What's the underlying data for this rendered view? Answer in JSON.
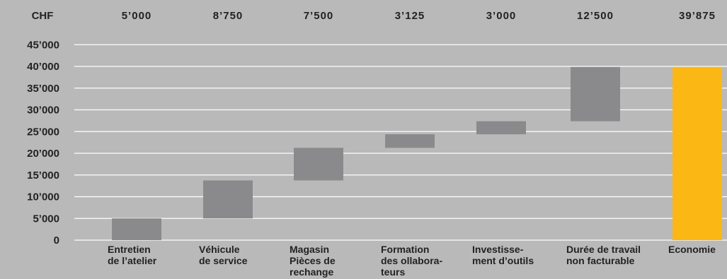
{
  "chart_data": {
    "type": "bar",
    "subtype": "waterfall",
    "unit_label": "CHF",
    "categories": [
      [
        "Entretien",
        "de l’atelier"
      ],
      [
        "Véhicule",
        "de service"
      ],
      [
        "Magasin",
        "Pièces de",
        "rechange"
      ],
      [
        "Formation",
        "des ollabora-",
        "teurs"
      ],
      [
        "Investisse-",
        "ment d’outils"
      ],
      [
        "Durée de travail",
        "non facturable"
      ],
      [
        "Economie"
      ]
    ],
    "value_labels": [
      "5’000",
      "8’750",
      "7’500",
      "3’125",
      "3’000",
      "12’500",
      "39’875"
    ],
    "values": [
      5000,
      8750,
      7500,
      3125,
      3000,
      12500,
      39875
    ],
    "bars": [
      {
        "start": 0,
        "end": 5000
      },
      {
        "start": 5000,
        "end": 13750
      },
      {
        "start": 13750,
        "end": 21250
      },
      {
        "start": 21250,
        "end": 24375
      },
      {
        "start": 24375,
        "end": 27375
      },
      {
        "start": 27375,
        "end": 39875
      },
      {
        "start": 0,
        "end": 39875
      }
    ],
    "y_ticks": [
      0,
      5000,
      10000,
      15000,
      20000,
      25000,
      30000,
      35000,
      40000,
      45000
    ],
    "y_tick_labels": [
      "0",
      "5’000",
      "10’000",
      "15’000",
      "20’000",
      "25’000",
      "30’000",
      "35’000",
      "40’000",
      "45’000"
    ],
    "ylim": [
      0,
      45000
    ],
    "grid": true,
    "colors": {
      "background": "#b9b9b9",
      "bar": "#8a8a8c",
      "total_bar": "#fbb714",
      "grid": "#ffffff",
      "text": "#222222"
    }
  }
}
